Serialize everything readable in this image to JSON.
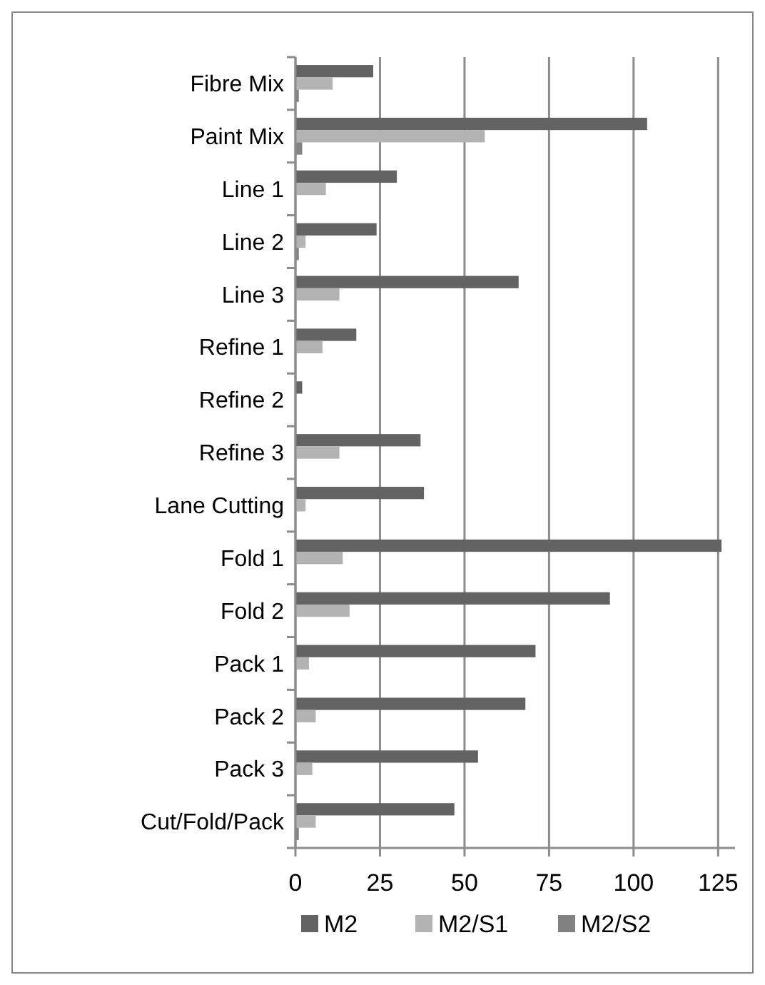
{
  "chart_data": {
    "type": "bar",
    "orientation": "horizontal",
    "categories": [
      "Fibre Mix",
      "Paint Mix",
      "Line 1",
      "Line 2",
      "Line 3",
      "Refine 1",
      "Refine 2",
      "Refine 3",
      "Lane Cutting",
      "Fold 1",
      "Fold 2",
      "Pack 1",
      "Pack 2",
      "Pack 3",
      "Cut/Fold/Pack"
    ],
    "series": [
      {
        "name": "M2",
        "color": "#636363",
        "values": [
          23,
          104,
          30,
          24,
          66,
          18,
          2,
          37,
          38,
          126,
          93,
          71,
          68,
          54,
          47
        ]
      },
      {
        "name": "M2/S1",
        "color": "#b3b3b3",
        "values": [
          11,
          56,
          9,
          3,
          13,
          8,
          0,
          13,
          3,
          14,
          16,
          4,
          6,
          5,
          6
        ]
      },
      {
        "name": "M2/S2",
        "color": "#828282",
        "values": [
          1,
          2,
          0,
          1,
          0,
          0,
          0,
          0,
          0,
          0,
          0,
          0,
          0,
          0,
          1
        ]
      }
    ],
    "xlim": [
      0,
      130
    ],
    "xticks": [
      0,
      25,
      50,
      75,
      100,
      125
    ],
    "grid": "x",
    "legend": "bottom"
  }
}
